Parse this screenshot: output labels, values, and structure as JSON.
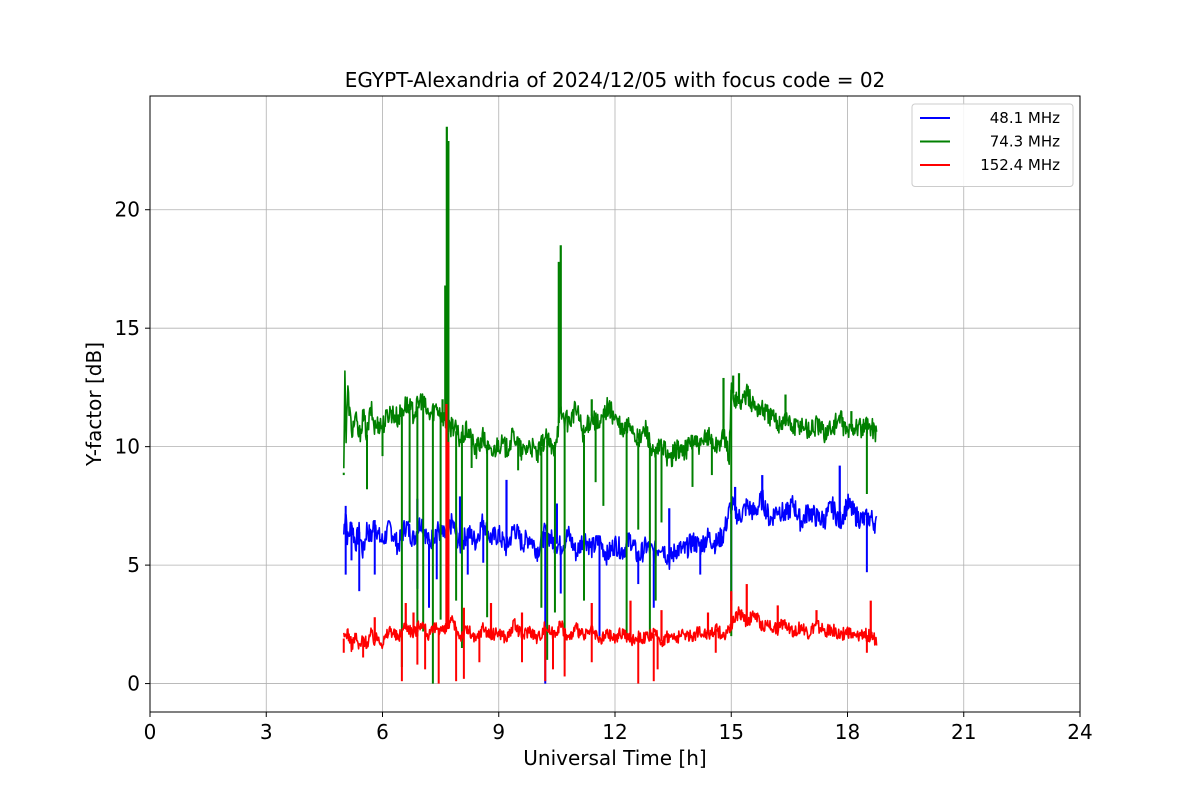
{
  "chart_data": {
    "type": "line",
    "title": "EGYPT-Alexandria of 2024/12/05 with focus code = 02",
    "xlabel": "Universal Time [h]",
    "ylabel": "Y-factor [dB]",
    "xlim": [
      0,
      24
    ],
    "ylim": [
      -1.2,
      24.8
    ],
    "xticks": [
      0,
      3,
      6,
      9,
      12,
      15,
      18,
      21,
      24
    ],
    "yticks": [
      0,
      5,
      10,
      15,
      20
    ],
    "grid": true,
    "legend_position": "top-right",
    "series": [
      {
        "name": "48.1 MHz",
        "color": "#0000ff",
        "x": [
          5.0,
          5.05,
          5.1,
          5.2,
          5.3,
          5.4,
          5.5,
          5.6,
          5.7,
          5.8,
          5.9,
          6.0,
          6.2,
          6.4,
          6.6,
          6.8,
          7.0,
          7.2,
          7.4,
          7.6,
          7.8,
          8.0,
          8.2,
          8.4,
          8.6,
          8.8,
          9.0,
          9.2,
          9.4,
          9.6,
          9.8,
          10.0,
          10.2,
          10.4,
          10.6,
          10.8,
          11.0,
          11.2,
          11.4,
          11.6,
          11.8,
          12.0,
          12.2,
          12.4,
          12.6,
          12.8,
          13.0,
          13.2,
          13.4,
          13.6,
          13.8,
          14.0,
          14.2,
          14.4,
          14.6,
          14.8,
          15.0,
          15.2,
          15.4,
          15.6,
          15.8,
          16.0,
          16.2,
          16.4,
          16.6,
          16.8,
          17.0,
          17.2,
          17.4,
          17.6,
          17.8,
          18.0,
          18.2,
          18.4,
          18.6,
          18.75
        ],
        "y": [
          6.3,
          7.5,
          6.0,
          6.8,
          5.9,
          6.4,
          5.5,
          6.6,
          6.1,
          6.9,
          6.2,
          6.0,
          6.6,
          5.8,
          6.7,
          6.1,
          6.9,
          5.9,
          6.5,
          6.2,
          6.8,
          5.8,
          6.4,
          6.0,
          6.9,
          6.1,
          6.3,
          5.7,
          6.6,
          5.9,
          6.2,
          5.6,
          6.4,
          6.0,
          5.8,
          6.3,
          5.5,
          6.2,
          5.7,
          6.0,
          5.4,
          5.9,
          5.6,
          6.1,
          5.3,
          5.8,
          5.5,
          5.9,
          5.2,
          5.7,
          5.6,
          6.0,
          5.8,
          6.2,
          5.9,
          6.3,
          7.6,
          7.0,
          7.5,
          7.2,
          7.8,
          6.9,
          7.4,
          7.1,
          7.6,
          6.8,
          7.3,
          7.0,
          6.9,
          7.5,
          6.8,
          7.6,
          7.1,
          6.9,
          7.0,
          6.7
        ],
        "dips": [
          [
            5.05,
            4.6
          ],
          [
            5.2,
            5.2
          ],
          [
            5.4,
            3.9
          ],
          [
            5.8,
            4.6
          ],
          [
            6.9,
            4.0
          ],
          [
            7.2,
            3.2
          ],
          [
            7.4,
            4.4
          ],
          [
            8.2,
            4.6
          ],
          [
            8.6,
            5.1
          ],
          [
            10.2,
            0.0
          ],
          [
            10.6,
            3.8
          ],
          [
            11.2,
            4.6
          ],
          [
            11.6,
            2.0
          ],
          [
            12.6,
            4.2
          ],
          [
            13.0,
            3.2
          ],
          [
            14.2,
            4.6
          ],
          [
            15.0,
            3.5
          ],
          [
            18.5,
            4.7
          ]
        ],
        "spikes": [
          [
            6.9,
            7.8
          ],
          [
            8.0,
            7.9
          ],
          [
            9.2,
            8.6
          ],
          [
            10.5,
            7.6
          ],
          [
            13.4,
            7.4
          ],
          [
            15.1,
            8.3
          ],
          [
            15.8,
            8.8
          ],
          [
            17.8,
            9.2
          ]
        ]
      },
      {
        "name": "74.3 MHz",
        "color": "#008000",
        "x": [
          5.0,
          5.03,
          5.06,
          5.1,
          5.2,
          5.3,
          5.4,
          5.5,
          5.6,
          5.7,
          5.8,
          5.9,
          6.0,
          6.2,
          6.4,
          6.6,
          6.8,
          7.0,
          7.2,
          7.4,
          7.6,
          7.7,
          7.8,
          8.0,
          8.2,
          8.4,
          8.6,
          8.8,
          9.0,
          9.2,
          9.4,
          9.6,
          9.8,
          10.0,
          10.2,
          10.4,
          10.6,
          10.8,
          11.0,
          11.2,
          11.4,
          11.6,
          11.8,
          12.0,
          12.2,
          12.4,
          12.6,
          12.8,
          13.0,
          13.2,
          13.4,
          13.6,
          13.8,
          14.0,
          14.2,
          14.4,
          14.6,
          14.8,
          14.95,
          15.0,
          15.2,
          15.4,
          15.6,
          15.8,
          16.0,
          16.2,
          16.4,
          16.6,
          16.8,
          17.0,
          17.2,
          17.4,
          17.6,
          17.8,
          18.0,
          18.2,
          18.4,
          18.6,
          18.75
        ],
        "y": [
          8.9,
          13.4,
          10.2,
          12.4,
          10.6,
          11.2,
          10.4,
          11.3,
          10.5,
          11.6,
          10.8,
          11.0,
          10.9,
          11.5,
          11.2,
          11.8,
          11.4,
          12.0,
          11.3,
          11.7,
          11.2,
          10.6,
          11.0,
          10.3,
          10.7,
          9.8,
          10.4,
          9.6,
          10.2,
          9.9,
          10.5,
          9.7,
          10.1,
          9.6,
          10.4,
          9.8,
          11.4,
          11.0,
          11.6,
          10.5,
          11.3,
          10.8,
          11.7,
          11.2,
          10.6,
          11.0,
          10.2,
          10.8,
          9.5,
          10.1,
          9.4,
          9.9,
          9.8,
          10.3,
          9.9,
          10.5,
          10.0,
          10.4,
          9.6,
          12.4,
          11.8,
          12.2,
          11.7,
          11.6,
          11.3,
          11.0,
          11.2,
          10.8,
          11.0,
          10.7,
          10.9,
          10.6,
          10.8,
          11.2,
          10.6,
          10.9,
          10.7,
          10.9,
          10.6
        ],
        "dips": [
          [
            5.0,
            8.8
          ],
          [
            5.6,
            8.2
          ],
          [
            6.0,
            9.6
          ],
          [
            6.5,
            0.7
          ],
          [
            6.7,
            6.8
          ],
          [
            6.9,
            2.0
          ],
          [
            7.05,
            2.2
          ],
          [
            7.3,
            0.0
          ],
          [
            7.5,
            2.7
          ],
          [
            7.7,
            4.2
          ],
          [
            7.9,
            3.5
          ],
          [
            8.05,
            1.5
          ],
          [
            8.3,
            9.1
          ],
          [
            8.7,
            2.8
          ],
          [
            9.5,
            9.0
          ],
          [
            10.1,
            3.2
          ],
          [
            10.25,
            1.0
          ],
          [
            10.45,
            3.0
          ],
          [
            10.7,
            1.0
          ],
          [
            11.2,
            3.5
          ],
          [
            11.5,
            8.5
          ],
          [
            11.7,
            7.5
          ],
          [
            12.3,
            2.0
          ],
          [
            12.6,
            6.5
          ],
          [
            12.9,
            2.0
          ],
          [
            13.05,
            3.5
          ],
          [
            13.2,
            6.8
          ],
          [
            14.0,
            8.3
          ],
          [
            14.5,
            8.8
          ],
          [
            15.0,
            2.0
          ],
          [
            18.5,
            8.0
          ]
        ],
        "spikes": [
          [
            7.55,
            12.0
          ],
          [
            7.62,
            16.8
          ],
          [
            7.66,
            23.5
          ],
          [
            7.7,
            22.9
          ],
          [
            10.55,
            17.8
          ],
          [
            10.6,
            18.5
          ],
          [
            11.4,
            12.0
          ],
          [
            14.8,
            12.9
          ],
          [
            15.05,
            13.0
          ],
          [
            15.2,
            13.1
          ],
          [
            16.4,
            12.2
          ],
          [
            18.1,
            11.5
          ]
        ]
      },
      {
        "name": "152.4 MHz",
        "color": "#ff0000",
        "x": [
          5.0,
          5.1,
          5.2,
          5.3,
          5.4,
          5.5,
          5.6,
          5.7,
          5.8,
          5.9,
          6.0,
          6.2,
          6.4,
          6.6,
          6.8,
          7.0,
          7.2,
          7.4,
          7.6,
          7.8,
          8.0,
          8.2,
          8.4,
          8.6,
          8.8,
          9.0,
          9.2,
          9.4,
          9.6,
          9.8,
          10.0,
          10.2,
          10.4,
          10.6,
          10.8,
          11.0,
          11.2,
          11.4,
          11.6,
          11.8,
          12.0,
          12.2,
          12.4,
          12.6,
          12.8,
          13.0,
          13.2,
          13.4,
          13.6,
          13.8,
          14.0,
          14.2,
          14.4,
          14.6,
          14.8,
          15.0,
          15.2,
          15.4,
          15.6,
          15.8,
          16.0,
          16.2,
          16.4,
          16.6,
          16.8,
          17.0,
          17.2,
          17.4,
          17.6,
          17.8,
          18.0,
          18.2,
          18.4,
          18.6,
          18.75
        ],
        "y": [
          1.9,
          2.2,
          1.6,
          2.0,
          1.5,
          1.9,
          1.7,
          2.1,
          1.8,
          2.0,
          1.7,
          2.3,
          1.9,
          2.5,
          2.1,
          2.6,
          2.0,
          2.4,
          2.2,
          2.6,
          2.0,
          2.3,
          1.8,
          2.4,
          2.0,
          2.2,
          1.9,
          2.5,
          2.0,
          2.3,
          1.9,
          2.4,
          2.1,
          2.5,
          1.9,
          2.3,
          2.0,
          2.2,
          1.8,
          2.1,
          1.9,
          2.2,
          1.8,
          2.0,
          1.9,
          2.1,
          1.8,
          2.0,
          1.9,
          2.1,
          2.0,
          2.2,
          2.1,
          2.3,
          2.0,
          2.5,
          3.0,
          2.6,
          2.9,
          2.4,
          2.5,
          2.3,
          2.6,
          2.2,
          2.4,
          2.1,
          2.5,
          2.2,
          2.3,
          2.0,
          2.2,
          1.9,
          2.1,
          2.0,
          1.8
        ],
        "dips": [
          [
            5.0,
            1.3
          ],
          [
            5.5,
            1.1
          ],
          [
            6.5,
            0.1
          ],
          [
            6.9,
            0.8
          ],
          [
            7.1,
            0.6
          ],
          [
            7.45,
            0.0
          ],
          [
            7.9,
            0.1
          ],
          [
            8.1,
            0.2
          ],
          [
            8.5,
            0.9
          ],
          [
            9.6,
            0.9
          ],
          [
            10.2,
            0.1
          ],
          [
            10.4,
            0.6
          ],
          [
            10.7,
            0.3
          ],
          [
            11.4,
            0.9
          ],
          [
            12.6,
            0.0
          ],
          [
            13.0,
            0.1
          ],
          [
            13.1,
            0.6
          ],
          [
            14.6,
            1.3
          ],
          [
            18.5,
            1.3
          ]
        ],
        "spikes": [
          [
            5.8,
            2.8
          ],
          [
            6.6,
            3.4
          ],
          [
            6.8,
            3.0
          ],
          [
            7.65,
            11.8
          ],
          [
            7.7,
            10.2
          ],
          [
            8.1,
            3.2
          ],
          [
            8.8,
            3.4
          ],
          [
            9.6,
            3.0
          ],
          [
            11.4,
            3.4
          ],
          [
            12.4,
            3.5
          ],
          [
            13.2,
            3.1
          ],
          [
            14.4,
            3.0
          ],
          [
            15.0,
            3.9
          ],
          [
            15.4,
            4.2
          ],
          [
            16.2,
            3.3
          ],
          [
            17.2,
            3.1
          ],
          [
            18.6,
            3.5
          ]
        ]
      }
    ]
  }
}
